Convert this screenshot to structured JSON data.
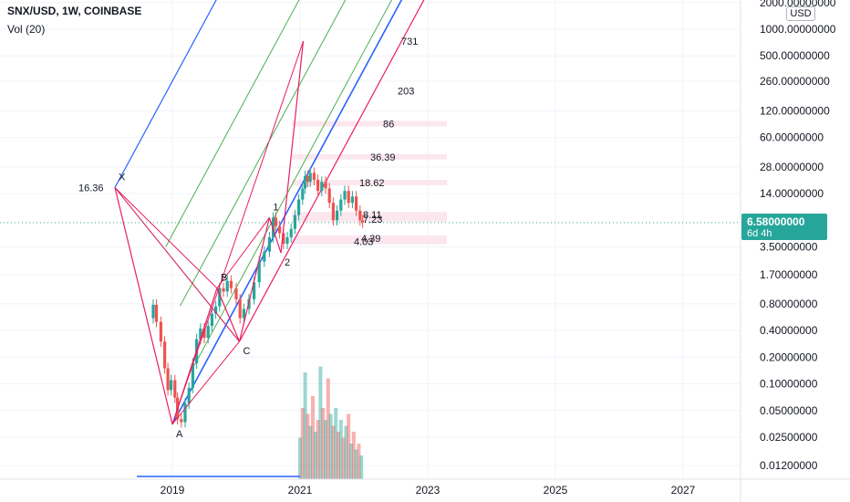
{
  "header": {
    "symbol": "SNX/USD, 1W, COINBASE",
    "volume_label": "Vol (20)"
  },
  "currency_badge": "USD",
  "last_price": {
    "value": "6.58000000",
    "countdown": "6d 4h",
    "color": "#26a69a"
  },
  "chart_data": {
    "type": "candlestick",
    "scale": "log",
    "y_ticks": [
      {
        "value": 2000,
        "label": "2000.00000000"
      },
      {
        "value": 1000,
        "label": "1000.00000000"
      },
      {
        "value": 500,
        "label": "500.00000000"
      },
      {
        "value": 260,
        "label": "260.00000000"
      },
      {
        "value": 120,
        "label": "120.00000000"
      },
      {
        "value": 60,
        "label": "60.00000000"
      },
      {
        "value": 28,
        "label": "28.00000000"
      },
      {
        "value": 14,
        "label": "14.00000000"
      },
      {
        "value": 3.5,
        "label": "3.50000000"
      },
      {
        "value": 1.7,
        "label": "1.70000000"
      },
      {
        "value": 0.8,
        "label": "0.80000000"
      },
      {
        "value": 0.4,
        "label": "0.40000000"
      },
      {
        "value": 0.2,
        "label": "0.20000000"
      },
      {
        "value": 0.1,
        "label": "0.10000000"
      },
      {
        "value": 0.05,
        "label": "0.05000000"
      },
      {
        "value": 0.025,
        "label": "0.02500000"
      },
      {
        "value": 0.012,
        "label": "0.01200000"
      }
    ],
    "x_ticks": [
      {
        "value": 2019,
        "label": "2019"
      },
      {
        "value": 2021,
        "label": "2021"
      },
      {
        "value": 2023,
        "label": "2023"
      },
      {
        "value": 2025,
        "label": "2025"
      },
      {
        "value": 2027,
        "label": "2027"
      }
    ],
    "price_path": [
      [
        2018.63,
        0.55
      ],
      [
        2018.7,
        0.78
      ],
      [
        2018.75,
        0.5
      ],
      [
        2018.82,
        0.3
      ],
      [
        2018.88,
        0.15
      ],
      [
        2018.93,
        0.085
      ],
      [
        2018.98,
        0.11
      ],
      [
        2019.04,
        0.07
      ],
      [
        2019.08,
        0.04
      ],
      [
        2019.14,
        0.037
      ],
      [
        2019.2,
        0.06
      ],
      [
        2019.26,
        0.09
      ],
      [
        2019.32,
        0.17
      ],
      [
        2019.38,
        0.32
      ],
      [
        2019.44,
        0.42
      ],
      [
        2019.5,
        0.33
      ],
      [
        2019.56,
        0.45
      ],
      [
        2019.62,
        0.62
      ],
      [
        2019.68,
        0.75
      ],
      [
        2019.74,
        1.2
      ],
      [
        2019.8,
        1.1
      ],
      [
        2019.86,
        1.45
      ],
      [
        2019.92,
        1.2
      ],
      [
        2020.0,
        0.9
      ],
      [
        2020.06,
        0.55
      ],
      [
        2020.12,
        0.7
      ],
      [
        2020.2,
        0.9
      ],
      [
        2020.28,
        1.4
      ],
      [
        2020.36,
        2.4
      ],
      [
        2020.44,
        3.1
      ],
      [
        2020.52,
        4.5
      ],
      [
        2020.58,
        7.5
      ],
      [
        2020.62,
        6.0
      ],
      [
        2020.68,
        5.0
      ],
      [
        2020.74,
        3.8
      ],
      [
        2020.8,
        4.5
      ],
      [
        2020.86,
        5.6
      ],
      [
        2020.92,
        8.0
      ],
      [
        2020.98,
        12.0
      ],
      [
        2021.04,
        16.0
      ],
      [
        2021.08,
        22.0
      ],
      [
        2021.12,
        19.0
      ],
      [
        2021.16,
        24.0
      ],
      [
        2021.22,
        20.0
      ],
      [
        2021.28,
        15.0
      ],
      [
        2021.34,
        19.0
      ],
      [
        2021.4,
        16.0
      ],
      [
        2021.46,
        11.0
      ],
      [
        2021.52,
        7.0
      ],
      [
        2021.58,
        9.0
      ],
      [
        2021.64,
        12.0
      ],
      [
        2021.7,
        15.0
      ],
      [
        2021.76,
        11.0
      ],
      [
        2021.82,
        13.0
      ],
      [
        2021.88,
        9.0
      ],
      [
        2021.94,
        7.0
      ],
      [
        2021.98,
        6.58
      ]
    ],
    "volume_bars": [
      [
        2021.0,
        0.35
      ],
      [
        2021.04,
        0.6
      ],
      [
        2021.08,
        0.9
      ],
      [
        2021.12,
        0.55
      ],
      [
        2021.16,
        0.45
      ],
      [
        2021.2,
        0.7
      ],
      [
        2021.24,
        0.4
      ],
      [
        2021.28,
        0.5
      ],
      [
        2021.32,
        0.95
      ],
      [
        2021.36,
        0.6
      ],
      [
        2021.4,
        0.5
      ],
      [
        2021.44,
        0.85
      ],
      [
        2021.48,
        0.55
      ],
      [
        2021.52,
        0.45
      ],
      [
        2021.56,
        0.6
      ],
      [
        2021.6,
        0.4
      ],
      [
        2021.64,
        0.5
      ],
      [
        2021.68,
        0.35
      ],
      [
        2021.72,
        0.45
      ],
      [
        2021.76,
        0.55
      ],
      [
        2021.8,
        0.3
      ],
      [
        2021.84,
        0.4
      ],
      [
        2021.88,
        0.25
      ],
      [
        2021.92,
        0.3
      ],
      [
        2021.96,
        0.2
      ]
    ],
    "pattern_points": [
      {
        "label": "X",
        "x": 2018.1,
        "y": 16.36
      },
      {
        "label": "A",
        "x": 2019.0,
        "y": 0.035
      },
      {
        "label": "B",
        "x": 2019.7,
        "y": 1.2
      },
      {
        "label": "C",
        "x": 2020.05,
        "y": 0.3
      },
      {
        "label": "1",
        "x": 2020.52,
        "y": 7.5
      },
      {
        "label": "2",
        "x": 2020.7,
        "y": 3.0
      }
    ],
    "x_value_label": "16.36",
    "fib_levels": [
      {
        "label": "731",
        "value": 731
      },
      {
        "label": "203",
        "value": 203
      },
      {
        "label": "86",
        "value": 86
      },
      {
        "label": "36.39",
        "value": 36.39
      },
      {
        "label": "18.62",
        "value": 18.62
      },
      {
        "label": "8.11",
        "value": 8.11
      },
      {
        "label": "7.23",
        "value": 7.23
      },
      {
        "label": "4.39",
        "value": 4.39
      },
      {
        "label": "4.03",
        "value": 4.03
      }
    ],
    "colors": {
      "up": "#26a69a",
      "down": "#ef5350",
      "pitchfork_blue": "#2962ff",
      "pitchfork_green": "#4caf50",
      "pattern_pink": "#e91e63",
      "volume_ma": "#2962ff"
    }
  }
}
